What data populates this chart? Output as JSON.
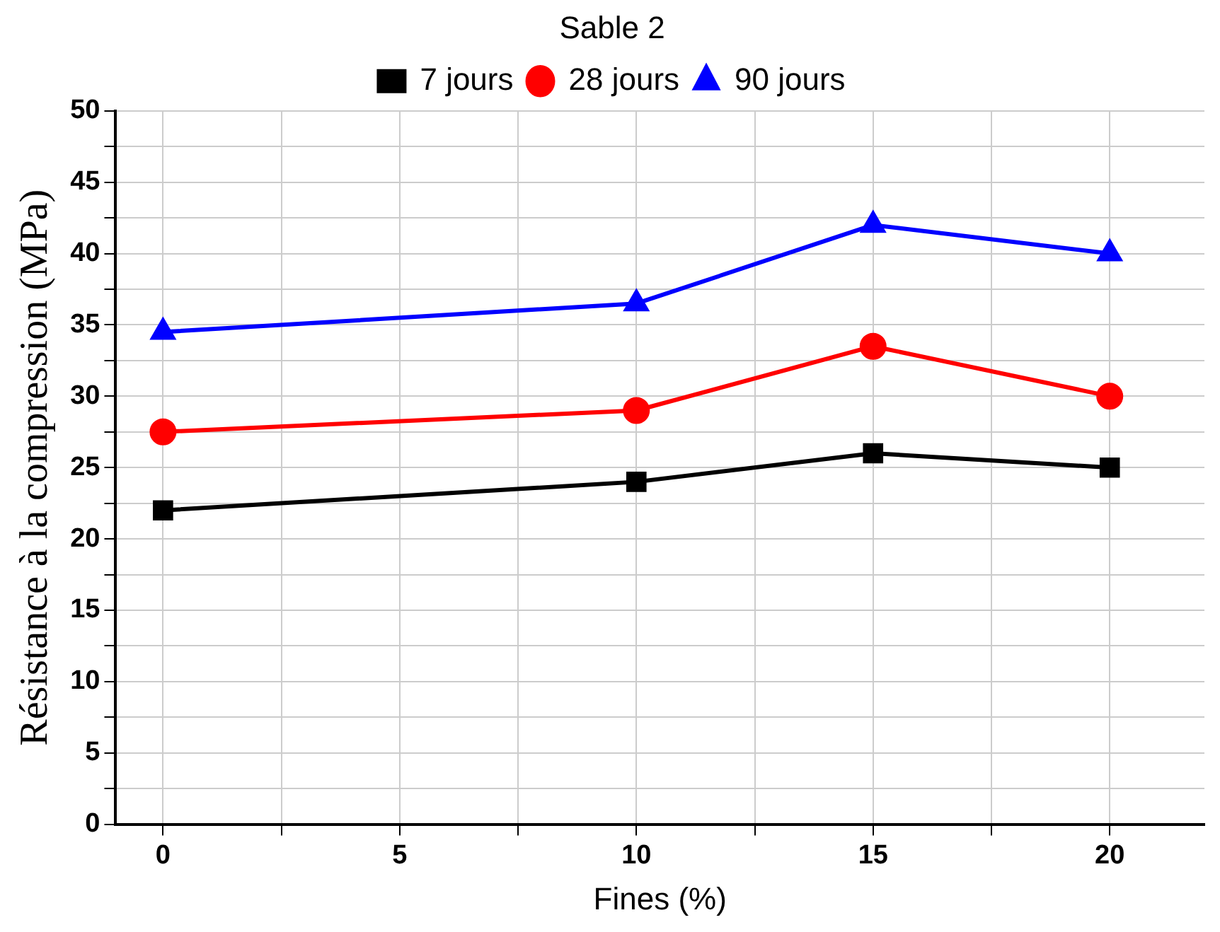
{
  "chart_data": {
    "type": "line",
    "xlabel": "Fines (%)",
    "ylabel": "Résistance à la compression (MPa)",
    "legend_title": "Sable 2",
    "x": [
      0,
      10,
      15,
      20
    ],
    "series": [
      {
        "name": "7 jours",
        "color": "#000000",
        "marker": "square",
        "values": [
          22,
          24,
          26,
          25
        ]
      },
      {
        "name": "28 jours",
        "color": "#ff0000",
        "marker": "circle",
        "values": [
          27.5,
          29,
          33.5,
          30
        ]
      },
      {
        "name": "90 jours",
        "color": "#0000ff",
        "marker": "triangle",
        "values": [
          34.5,
          36.5,
          42,
          40
        ]
      }
    ],
    "xlim": [
      -1,
      22
    ],
    "ylim": [
      0,
      50
    ],
    "xticks": [
      0,
      {
        "value": 2.5,
        "label": null
      },
      5,
      {
        "value": 7.5,
        "label": null
      },
      10,
      {
        "value": 12.5,
        "label": null
      },
      15,
      {
        "value": 17.5,
        "label": null
      },
      20
    ],
    "yticks": [
      0,
      {
        "value": 2.5,
        "label": null
      },
      5,
      {
        "value": 7.5,
        "label": null
      },
      10,
      {
        "value": 12.5,
        "label": null
      },
      15,
      {
        "value": 17.5,
        "label": null
      },
      20,
      {
        "value": 22.5,
        "label": null
      },
      25,
      {
        "value": 27.5,
        "label": null
      },
      30,
      {
        "value": 32.5,
        "label": null
      },
      35,
      {
        "value": 37.5,
        "label": null
      },
      40,
      {
        "value": 42.5,
        "label": null
      },
      45,
      {
        "value": 47.5,
        "label": null
      },
      50
    ],
    "grid": true,
    "legend": "top",
    "line_style": "solid"
  }
}
